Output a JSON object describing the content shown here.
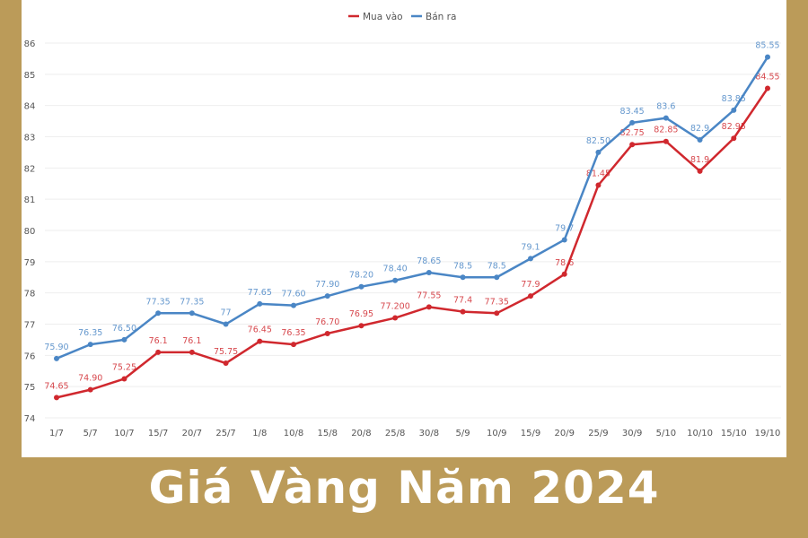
{
  "title": "Giá Vàng Năm 2024",
  "chart_data": {
    "type": "line",
    "categories": [
      "1/7",
      "5/7",
      "10/7",
      "15/7",
      "20/7",
      "25/7",
      "1/8",
      "10/8",
      "15/8",
      "20/8",
      "25/8",
      "30/8",
      "5/9",
      "10/9",
      "15/9",
      "20/9",
      "25/9",
      "30/9",
      "5/10",
      "10/10",
      "15/10",
      "19/10"
    ],
    "series": [
      {
        "name": "Mua vào",
        "color": "#d0282e",
        "values": [
          74.65,
          74.9,
          75.25,
          76.1,
          76.1,
          75.75,
          76.45,
          76.35,
          76.7,
          76.95,
          77.2,
          77.55,
          77.4,
          77.35,
          77.9,
          78.6,
          81.45,
          82.75,
          82.85,
          81.9,
          82.95,
          84.55
        ],
        "labels": [
          "74.65",
          "74.90",
          "75.25",
          "76.1",
          "76.1",
          "75.75",
          "76.45",
          "76.35",
          "76.70",
          "76.95",
          "77.200",
          "77.55",
          "77.4",
          "77.35",
          "77.9",
          "78.6",
          "81.45",
          "82.75",
          "82.85",
          "81.9",
          "82.95",
          "84.55"
        ]
      },
      {
        "name": "Bán ra",
        "color": "#4a86c5",
        "values": [
          75.9,
          76.35,
          76.5,
          77.35,
          77.35,
          77,
          77.65,
          77.6,
          77.9,
          78.2,
          78.4,
          78.65,
          78.5,
          78.5,
          79.1,
          79.7,
          82.5,
          83.45,
          83.6,
          82.9,
          83.85,
          85.55
        ],
        "labels": [
          "75.90",
          "76.35",
          "76.50",
          "77.35",
          "77.35",
          "77",
          "77.65",
          "77.60",
          "77.90",
          "78.20",
          "78.40",
          "78.65",
          "78.5",
          "78.5",
          "79.1",
          "79.7",
          "82.50",
          "83.45",
          "83.6",
          "82.9",
          "83.85",
          "85.55"
        ]
      }
    ],
    "yticks": [
      "74",
      "75",
      "76",
      "77",
      "78",
      "79",
      "80",
      "81",
      "82",
      "83",
      "84",
      "85",
      "86"
    ],
    "ylim": [
      74,
      86
    ],
    "grid": true,
    "legend": "top-center",
    "xlabel": "",
    "ylabel": ""
  }
}
